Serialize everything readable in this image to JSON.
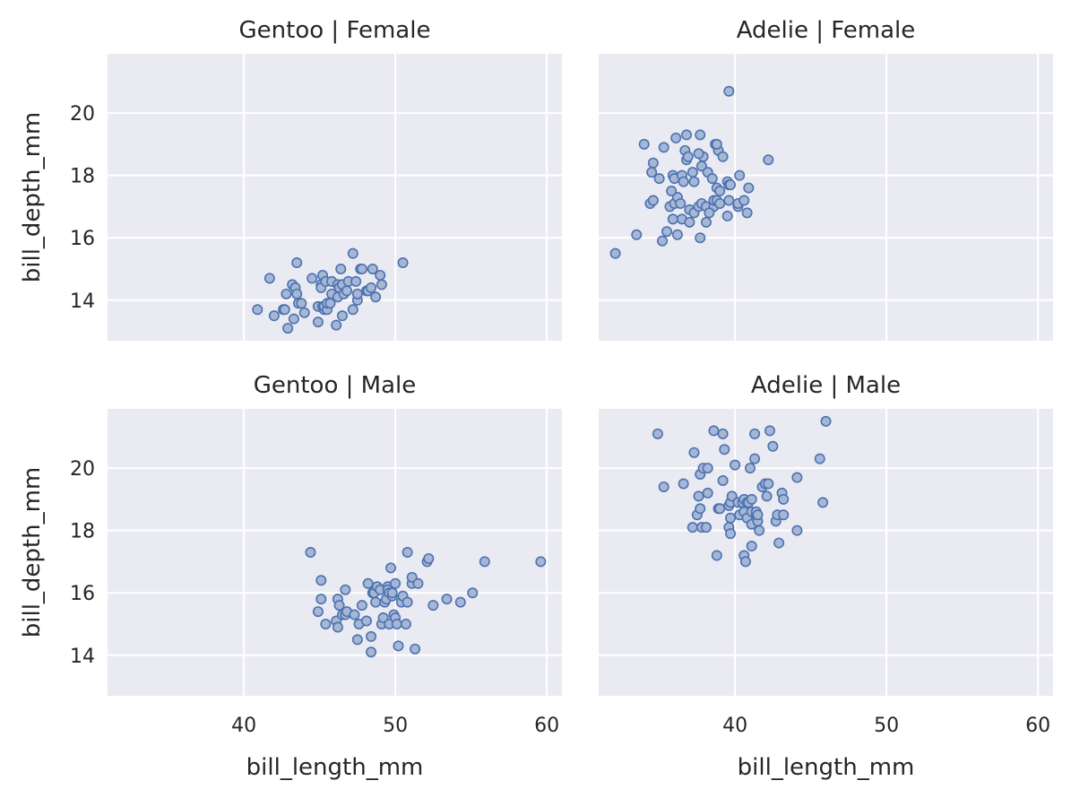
{
  "chart_data": {
    "type": "scatter",
    "x_axis": {
      "label": "bill_length_mm",
      "range": [
        31,
        61
      ],
      "ticks": [
        40,
        50,
        60
      ],
      "tick_labels": [
        "40",
        "50",
        "60"
      ]
    },
    "y_axis": {
      "label": "bill_depth_mm",
      "range": [
        12.7,
        21.9
      ],
      "ticks": [
        14,
        16,
        18,
        20
      ],
      "tick_labels": [
        "14",
        "16",
        "18",
        "20"
      ]
    },
    "grid": true,
    "background_color": "#eaeaf2",
    "grid_color": "#ffffff",
    "marker_color": "#4c72b0",
    "marker_fill": "#a6b7d6",
    "facets": [
      {
        "title": "Gentoo | Female",
        "points": [
          [
            40.9,
            13.7
          ],
          [
            41.7,
            14.7
          ],
          [
            42.0,
            13.5
          ],
          [
            42.6,
            13.7
          ],
          [
            42.7,
            13.7
          ],
          [
            42.8,
            14.2
          ],
          [
            42.9,
            13.1
          ],
          [
            43.2,
            14.5
          ],
          [
            43.3,
            13.4
          ],
          [
            43.4,
            14.4
          ],
          [
            43.5,
            15.2
          ],
          [
            43.6,
            13.9
          ],
          [
            43.5,
            14.2
          ],
          [
            43.8,
            13.9
          ],
          [
            44.0,
            13.6
          ],
          [
            44.5,
            14.7
          ],
          [
            44.9,
            13.3
          ],
          [
            44.9,
            13.8
          ],
          [
            45.1,
            14.5
          ],
          [
            45.1,
            14.4
          ],
          [
            45.2,
            14.8
          ],
          [
            45.2,
            13.8
          ],
          [
            45.3,
            13.7
          ],
          [
            45.3,
            13.8
          ],
          [
            45.4,
            14.6
          ],
          [
            45.5,
            13.7
          ],
          [
            45.5,
            13.9
          ],
          [
            45.7,
            13.9
          ],
          [
            45.8,
            14.6
          ],
          [
            45.8,
            14.2
          ],
          [
            46.1,
            13.2
          ],
          [
            46.2,
            14.5
          ],
          [
            46.2,
            14.1
          ],
          [
            46.3,
            14.4
          ],
          [
            46.4,
            15.0
          ],
          [
            46.5,
            14.5
          ],
          [
            46.5,
            13.5
          ],
          [
            46.6,
            14.2
          ],
          [
            46.8,
            14.3
          ],
          [
            46.9,
            14.6
          ],
          [
            47.2,
            13.7
          ],
          [
            47.2,
            15.5
          ],
          [
            47.4,
            14.6
          ],
          [
            47.5,
            14.0
          ],
          [
            47.5,
            14.2
          ],
          [
            47.7,
            15.0
          ],
          [
            47.8,
            15.0
          ],
          [
            48.1,
            14.3
          ],
          [
            48.2,
            14.3
          ],
          [
            48.4,
            14.4
          ],
          [
            48.5,
            15.0
          ],
          [
            48.7,
            14.1
          ],
          [
            49.1,
            14.5
          ],
          [
            49.0,
            14.8
          ],
          [
            50.5,
            15.2
          ]
        ]
      },
      {
        "title": "Adelie | Female",
        "points": [
          [
            32.1,
            15.5
          ],
          [
            33.5,
            16.1
          ],
          [
            34.0,
            19.0
          ],
          [
            34.4,
            17.1
          ],
          [
            34.6,
            18.4
          ],
          [
            34.6,
            17.2
          ],
          [
            35.0,
            17.9
          ],
          [
            35.2,
            15.9
          ],
          [
            35.5,
            16.2
          ],
          [
            35.7,
            17.0
          ],
          [
            35.9,
            16.6
          ],
          [
            35.9,
            18.0
          ],
          [
            36.0,
            17.1
          ],
          [
            36.0,
            17.9
          ],
          [
            36.2,
            16.1
          ],
          [
            36.2,
            17.3
          ],
          [
            36.4,
            17.1
          ],
          [
            36.5,
            16.6
          ],
          [
            36.5,
            18.0
          ],
          [
            36.6,
            17.8
          ],
          [
            36.7,
            18.8
          ],
          [
            36.8,
            18.5
          ],
          [
            36.9,
            18.6
          ],
          [
            37.0,
            16.5
          ],
          [
            37.0,
            16.9
          ],
          [
            37.2,
            18.1
          ],
          [
            37.3,
            17.8
          ],
          [
            37.3,
            16.8
          ],
          [
            37.6,
            17.0
          ],
          [
            37.7,
            16.0
          ],
          [
            37.8,
            17.1
          ],
          [
            37.8,
            18.3
          ],
          [
            37.9,
            18.6
          ],
          [
            38.1,
            17.0
          ],
          [
            38.1,
            16.5
          ],
          [
            38.2,
            18.1
          ],
          [
            38.5,
            17.9
          ],
          [
            38.6,
            17.0
          ],
          [
            38.6,
            17.2
          ],
          [
            38.7,
            19.0
          ],
          [
            38.8,
            17.2
          ],
          [
            38.8,
            17.6
          ],
          [
            38.9,
            18.8
          ],
          [
            39.0,
            17.1
          ],
          [
            39.0,
            17.5
          ],
          [
            39.2,
            18.6
          ],
          [
            39.5,
            16.7
          ],
          [
            39.5,
            17.8
          ],
          [
            39.6,
            17.7
          ],
          [
            39.6,
            17.2
          ],
          [
            39.6,
            20.7
          ],
          [
            39.7,
            17.7
          ],
          [
            40.2,
            17.0
          ],
          [
            40.2,
            17.1
          ],
          [
            40.3,
            18.0
          ],
          [
            40.6,
            17.2
          ],
          [
            40.8,
            16.8
          ],
          [
            40.9,
            17.6
          ],
          [
            42.2,
            18.5
          ],
          [
            35.3,
            18.9
          ],
          [
            36.1,
            19.2
          ],
          [
            36.8,
            19.3
          ],
          [
            37.7,
            19.3
          ],
          [
            38.8,
            19.0
          ],
          [
            34.5,
            18.1
          ],
          [
            35.8,
            17.5
          ],
          [
            37.6,
            18.7
          ],
          [
            38.3,
            16.8
          ]
        ]
      },
      {
        "title": "Gentoo | Male",
        "points": [
          [
            44.4,
            17.3
          ],
          [
            44.9,
            15.4
          ],
          [
            45.1,
            16.4
          ],
          [
            45.1,
            15.8
          ],
          [
            45.4,
            15.0
          ],
          [
            46.1,
            15.1
          ],
          [
            46.2,
            14.9
          ],
          [
            46.2,
            15.8
          ],
          [
            46.3,
            15.6
          ],
          [
            46.5,
            15.3
          ],
          [
            46.7,
            15.3
          ],
          [
            46.7,
            16.1
          ],
          [
            46.8,
            15.4
          ],
          [
            47.3,
            15.3
          ],
          [
            47.5,
            14.5
          ],
          [
            47.6,
            15.0
          ],
          [
            47.8,
            15.6
          ],
          [
            48.1,
            15.1
          ],
          [
            48.2,
            16.3
          ],
          [
            48.4,
            14.6
          ],
          [
            48.4,
            14.1
          ],
          [
            48.5,
            16.0
          ],
          [
            48.6,
            16.0
          ],
          [
            48.7,
            15.7
          ],
          [
            48.8,
            16.2
          ],
          [
            49.0,
            16.1
          ],
          [
            49.1,
            15.0
          ],
          [
            49.2,
            15.2
          ],
          [
            49.3,
            15.7
          ],
          [
            49.4,
            15.8
          ],
          [
            49.5,
            16.2
          ],
          [
            49.5,
            16.1
          ],
          [
            49.6,
            16.0
          ],
          [
            49.6,
            15.0
          ],
          [
            49.7,
            16.8
          ],
          [
            49.8,
            15.9
          ],
          [
            49.8,
            16.0
          ],
          [
            49.9,
            15.3
          ],
          [
            50.0,
            15.2
          ],
          [
            50.0,
            16.3
          ],
          [
            50.1,
            15.0
          ],
          [
            50.2,
            14.3
          ],
          [
            50.4,
            15.7
          ],
          [
            50.5,
            15.9
          ],
          [
            50.7,
            15.0
          ],
          [
            50.8,
            15.7
          ],
          [
            50.8,
            17.3
          ],
          [
            51.1,
            16.3
          ],
          [
            51.1,
            16.5
          ],
          [
            51.3,
            14.2
          ],
          [
            51.5,
            16.3
          ],
          [
            52.1,
            17.0
          ],
          [
            52.2,
            17.1
          ],
          [
            52.5,
            15.6
          ],
          [
            53.4,
            15.8
          ],
          [
            54.3,
            15.7
          ],
          [
            55.1,
            16.0
          ],
          [
            55.9,
            17.0
          ],
          [
            59.6,
            17.0
          ]
        ]
      },
      {
        "title": "Adelie | Male",
        "points": [
          [
            34.9,
            21.1
          ],
          [
            35.3,
            19.4
          ],
          [
            36.6,
            19.5
          ],
          [
            37.2,
            18.1
          ],
          [
            37.3,
            20.5
          ],
          [
            37.5,
            18.5
          ],
          [
            37.6,
            19.1
          ],
          [
            37.7,
            19.8
          ],
          [
            37.7,
            18.7
          ],
          [
            37.8,
            18.1
          ],
          [
            37.9,
            20.0
          ],
          [
            38.1,
            18.1
          ],
          [
            38.2,
            20.0
          ],
          [
            38.2,
            19.2
          ],
          [
            38.6,
            21.2
          ],
          [
            38.8,
            17.2
          ],
          [
            38.9,
            18.7
          ],
          [
            39.0,
            18.7
          ],
          [
            39.2,
            19.6
          ],
          [
            39.2,
            21.1
          ],
          [
            39.3,
            20.6
          ],
          [
            39.6,
            18.8
          ],
          [
            39.6,
            18.1
          ],
          [
            39.7,
            17.9
          ],
          [
            39.7,
            18.4
          ],
          [
            39.7,
            18.9
          ],
          [
            39.8,
            19.1
          ],
          [
            40.0,
            20.1
          ],
          [
            40.2,
            18.9
          ],
          [
            40.3,
            18.5
          ],
          [
            40.5,
            18.9
          ],
          [
            40.6,
            18.6
          ],
          [
            40.6,
            17.2
          ],
          [
            40.6,
            19.0
          ],
          [
            40.7,
            17.0
          ],
          [
            40.8,
            18.4
          ],
          [
            40.8,
            18.9
          ],
          [
            40.9,
            18.9
          ],
          [
            41.0,
            20.0
          ],
          [
            41.1,
            17.5
          ],
          [
            41.1,
            18.2
          ],
          [
            41.1,
            19.0
          ],
          [
            41.1,
            18.6
          ],
          [
            41.3,
            20.3
          ],
          [
            41.3,
            21.1
          ],
          [
            41.4,
            18.5
          ],
          [
            41.4,
            18.6
          ],
          [
            41.5,
            18.3
          ],
          [
            41.5,
            18.5
          ],
          [
            41.6,
            18.0
          ],
          [
            41.8,
            19.4
          ],
          [
            42.0,
            19.5
          ],
          [
            42.1,
            19.1
          ],
          [
            42.2,
            19.5
          ],
          [
            42.3,
            21.2
          ],
          [
            42.5,
            20.7
          ],
          [
            42.7,
            18.3
          ],
          [
            42.8,
            18.5
          ],
          [
            42.9,
            17.6
          ],
          [
            43.1,
            19.2
          ],
          [
            43.2,
            19.0
          ],
          [
            43.2,
            18.5
          ],
          [
            44.1,
            19.7
          ],
          [
            44.1,
            18.0
          ],
          [
            45.6,
            20.3
          ],
          [
            45.8,
            18.9
          ],
          [
            46.0,
            21.5
          ]
        ]
      }
    ]
  }
}
